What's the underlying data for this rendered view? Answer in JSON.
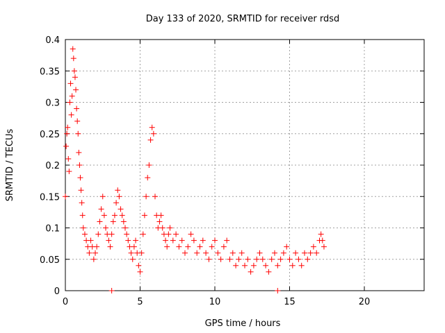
{
  "chart_data": {
    "type": "scatter",
    "title": "Day 133 of 2020, SRMTID for receiver rdsd",
    "xlabel": "GPS time / hours",
    "ylabel": "SRMTID / TECUs",
    "xlim": [
      0,
      24
    ],
    "ylim": [
      0,
      0.4
    ],
    "xticks": [
      0,
      5,
      10,
      15,
      20
    ],
    "xtick_labels": [
      "0",
      "5",
      "10",
      "15",
      "20"
    ],
    "yticks": [
      0,
      0.05,
      0.1,
      0.15,
      0.2,
      0.25,
      0.3,
      0.35,
      0.4
    ],
    "ytick_labels": [
      "0",
      "0.05",
      "0.1",
      "0.15",
      "0.2",
      "0.25",
      "0.3",
      "0.35",
      "0.4"
    ],
    "grid": true,
    "marker": "plus",
    "series": [
      {
        "name": "SRMTID rdsd",
        "color": "#ff0000",
        "x": [
          0.0,
          0.05,
          0.1,
          0.15,
          0.2,
          0.25,
          0.3,
          0.35,
          0.4,
          0.45,
          0.5,
          0.55,
          0.6,
          0.65,
          0.7,
          0.75,
          0.8,
          0.85,
          0.9,
          0.95,
          1.0,
          1.05,
          1.1,
          1.15,
          1.2,
          1.3,
          1.4,
          1.5,
          1.6,
          1.7,
          1.8,
          1.9,
          2.0,
          2.1,
          2.2,
          2.3,
          2.4,
          2.5,
          2.6,
          2.7,
          2.8,
          2.9,
          3.0,
          3.1,
          3.2,
          3.3,
          3.4,
          3.5,
          3.6,
          3.7,
          3.8,
          3.9,
          4.0,
          4.1,
          4.2,
          4.3,
          4.4,
          4.5,
          4.6,
          4.7,
          4.8,
          4.9,
          5.0,
          5.1,
          5.2,
          5.3,
          5.4,
          5.5,
          5.6,
          5.7,
          5.8,
          5.9,
          6.0,
          6.1,
          6.2,
          6.3,
          6.4,
          6.5,
          6.6,
          6.7,
          6.8,
          6.9,
          7.0,
          7.2,
          7.4,
          7.6,
          7.8,
          8.0,
          8.2,
          8.4,
          8.6,
          8.8,
          9.0,
          9.2,
          9.4,
          9.6,
          9.8,
          10.0,
          10.2,
          10.4,
          10.6,
          10.8,
          11.0,
          11.2,
          11.4,
          11.6,
          11.8,
          12.0,
          12.2,
          12.4,
          12.6,
          12.8,
          13.0,
          13.2,
          13.4,
          13.6,
          13.8,
          14.0,
          14.2,
          14.4,
          14.6,
          14.8,
          15.0,
          15.2,
          15.4,
          15.6,
          15.8,
          16.0,
          16.2,
          16.4,
          16.6,
          16.8,
          17.0,
          17.1,
          17.2,
          17.3,
          3.1,
          14.2
        ],
        "y": [
          0.15,
          0.23,
          0.25,
          0.26,
          0.21,
          0.19,
          0.3,
          0.33,
          0.28,
          0.31,
          0.385,
          0.37,
          0.35,
          0.34,
          0.32,
          0.29,
          0.27,
          0.25,
          0.22,
          0.2,
          0.18,
          0.16,
          0.14,
          0.12,
          0.1,
          0.09,
          0.08,
          0.07,
          0.06,
          0.08,
          0.07,
          0.05,
          0.06,
          0.07,
          0.09,
          0.11,
          0.13,
          0.15,
          0.12,
          0.1,
          0.09,
          0.08,
          0.07,
          0.09,
          0.11,
          0.12,
          0.14,
          0.16,
          0.15,
          0.13,
          0.12,
          0.11,
          0.1,
          0.09,
          0.08,
          0.07,
          0.06,
          0.05,
          0.07,
          0.08,
          0.06,
          0.04,
          0.03,
          0.06,
          0.09,
          0.12,
          0.15,
          0.18,
          0.2,
          0.24,
          0.26,
          0.25,
          0.15,
          0.12,
          0.1,
          0.11,
          0.12,
          0.1,
          0.09,
          0.08,
          0.07,
          0.09,
          0.1,
          0.08,
          0.09,
          0.07,
          0.08,
          0.06,
          0.07,
          0.09,
          0.08,
          0.06,
          0.07,
          0.08,
          0.06,
          0.05,
          0.07,
          0.08,
          0.06,
          0.05,
          0.07,
          0.08,
          0.05,
          0.06,
          0.04,
          0.05,
          0.06,
          0.04,
          0.05,
          0.03,
          0.04,
          0.05,
          0.06,
          0.05,
          0.04,
          0.03,
          0.05,
          0.06,
          0.04,
          0.05,
          0.06,
          0.07,
          0.05,
          0.04,
          0.06,
          0.05,
          0.04,
          0.06,
          0.05,
          0.06,
          0.07,
          0.06,
          0.08,
          0.09,
          0.08,
          0.07,
          0.0,
          0.0
        ]
      }
    ]
  }
}
